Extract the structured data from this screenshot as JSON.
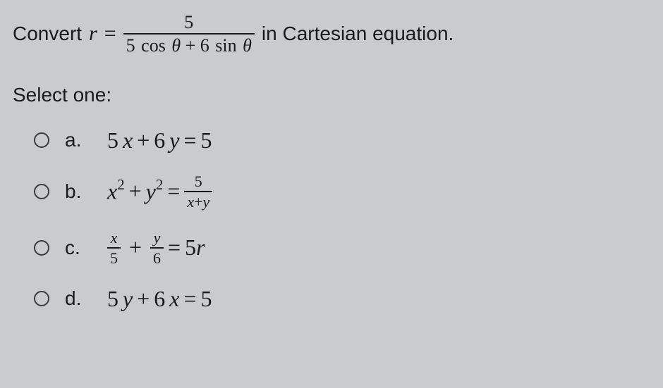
{
  "colors": {
    "background": "#c8cccf",
    "text": "#1a1a1a",
    "radio_border": "#3a3a3a",
    "frac_bar": "#1a1a1a"
  },
  "typography": {
    "stem_font": "Arial",
    "math_font": "Times New Roman",
    "stem_size_pt": 21,
    "option_math_size_pt": 24
  },
  "question": {
    "prefix": "Convert ",
    "lhs_var": "r",
    "eq_sign": "=",
    "fraction": {
      "numerator": "5",
      "denominator_parts": {
        "coef1": "5",
        "fn1": "cos",
        "arg1": "θ",
        "plus": "+",
        "coef2": "6",
        "fn2": "sin",
        "arg2": "θ"
      }
    },
    "suffix": " in Cartesian equation."
  },
  "select_label": "Select one:",
  "options": [
    {
      "letter": "a.",
      "type": "linear",
      "lhs": {
        "t1": "5",
        "v1": "x",
        "plus": " + ",
        "t2": "6",
        "v2": "y"
      },
      "eq": " = ",
      "rhs": "5",
      "interactable": true
    },
    {
      "letter": "b.",
      "type": "frac_rhs",
      "lhs": {
        "v1": "x",
        "p1": "2",
        "plus": " + ",
        "v2": "y",
        "p2": "2"
      },
      "eq": " = ",
      "rhs_frac": {
        "num": "5",
        "den_v1": "x",
        "den_plus": "+",
        "den_v2": "y"
      },
      "interactable": true
    },
    {
      "letter": "c.",
      "type": "frac_lhs",
      "lhs": {
        "f1": {
          "num_v": "x",
          "den": "5"
        },
        "plus": "+",
        "f2": {
          "num_v": "y",
          "den": "6"
        }
      },
      "eq": " = ",
      "rhs": {
        "coef": "5",
        "var": "r"
      },
      "interactable": true
    },
    {
      "letter": "d.",
      "type": "linear",
      "lhs": {
        "t1": "5",
        "v1": "y",
        "plus": " + ",
        "t2": "6",
        "v2": "x"
      },
      "eq": " = ",
      "rhs": "5",
      "interactable": true
    }
  ]
}
